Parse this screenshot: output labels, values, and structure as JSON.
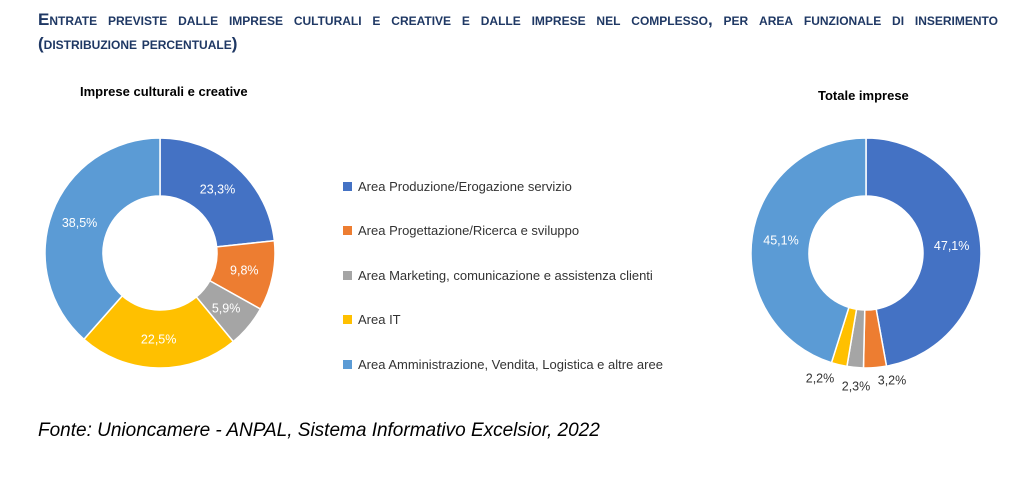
{
  "title": "Entrate previste dalle imprese culturali e creative e dalle imprese nel complesso, per area funzionale di inserimento (distribuzione percentuale)",
  "source": "Fonte: Unioncamere - ANPAL, Sistema Informativo Excelsior, 2022",
  "chart_data": [
    {
      "type": "pie",
      "subtype": "donut",
      "title": "Imprese culturali e creative",
      "categories": [
        "Area Produzione/Erogazione servizio",
        "Area Progettazione/Ricerca e sviluppo",
        "Area Marketing, comunicazione e assistenza clienti",
        "Area IT",
        "Area Amministrazione, Vendita, Logistica e altre aree"
      ],
      "values": [
        23.3,
        9.8,
        5.9,
        22.5,
        38.5
      ],
      "labels": [
        "23,3%",
        "9,8%",
        "5,9%",
        "22,5%",
        "38,5%"
      ],
      "colors": [
        "#4472c4",
        "#ed7d31",
        "#a5a5a5",
        "#ffc000",
        "#5b9bd5"
      ],
      "legend": "center"
    },
    {
      "type": "pie",
      "subtype": "donut",
      "title": "Totale imprese",
      "categories": [
        "Area Produzione/Erogazione servizio",
        "Area Progettazione/Ricerca e sviluppo",
        "Area Marketing, comunicazione e assistenza clienti",
        "Area IT",
        "Area Amministrazione, Vendita, Logistica e altre aree"
      ],
      "values": [
        47.1,
        3.2,
        2.3,
        2.2,
        45.1
      ],
      "labels": [
        "47,1%",
        "3,2%",
        "2,3%",
        "2,2%",
        "45,1%"
      ],
      "colors": [
        "#4472c4",
        "#ed7d31",
        "#a5a5a5",
        "#ffc000",
        "#5b9bd5"
      ],
      "legend": "center"
    }
  ]
}
